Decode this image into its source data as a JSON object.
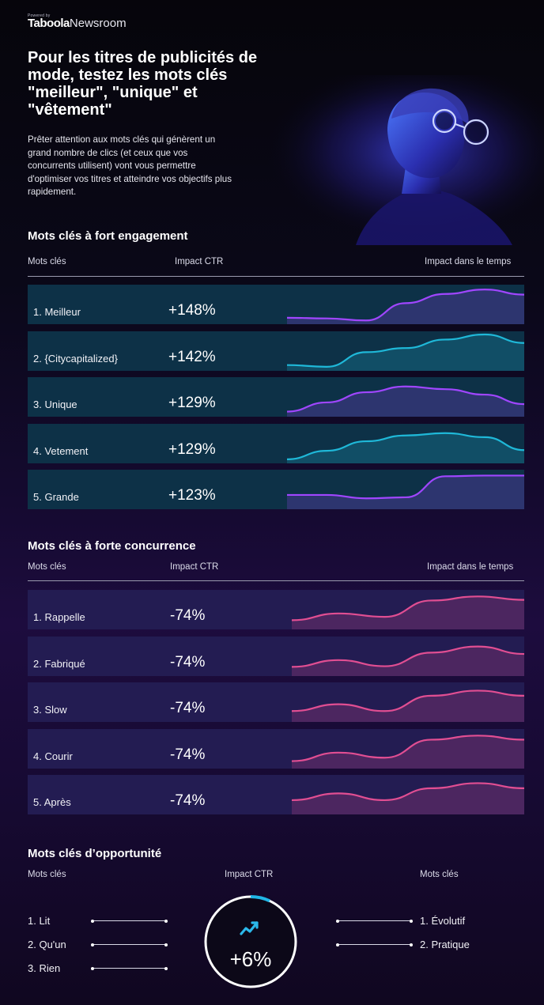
{
  "brand": {
    "powered_by": "Powered by",
    "logo_text": "Taboola",
    "product": "Newsroom"
  },
  "headline": "Pour les titres de publicités de mode, testez les mots clés \"meilleur\", \"unique\" et \"vêtement\"",
  "intro": "Prêter attention aux mots clés qui génèrent un grand nombre de clics (et ceux que vos concurrents utilisent) vont vous permettre d'optimiser vos titres et atteindre vos objectifs plus rapidement.",
  "colors": {
    "purple": "#a046ff",
    "cyan": "#1fb8d8",
    "pink": "#e14e92",
    "ring": "#20b6e6"
  },
  "chart_data": [
    {
      "type": "line",
      "title": "Mots clés à fort engagement",
      "columns": {
        "keyword": "Mots clés",
        "impact": "Impact CTR",
        "trend": "Impact dans le temps"
      },
      "rows": [
        {
          "label": "1. Meilleur",
          "impact": "+148%",
          "trend": [
            0.12,
            0.1,
            0.04,
            0.55,
            0.82,
            0.95,
            0.8
          ],
          "color": "purple"
        },
        {
          "label": "2. {Citycapitalized}",
          "impact": "+142%",
          "trend": [
            0.1,
            0.05,
            0.48,
            0.6,
            0.85,
            1.0,
            0.75
          ],
          "color": "cyan"
        },
        {
          "label": "3. Unique",
          "impact": "+129%",
          "trend": [
            0.08,
            0.35,
            0.65,
            0.82,
            0.74,
            0.58,
            0.3
          ],
          "color": "purple"
        },
        {
          "label": "4. Vetement",
          "impact": "+129%",
          "trend": [
            0.05,
            0.3,
            0.58,
            0.75,
            0.82,
            0.7,
            0.32
          ],
          "color": "cyan"
        },
        {
          "label": "5. Grande",
          "impact": "+123%",
          "trend": [
            0.35,
            0.35,
            0.25,
            0.28,
            0.9,
            0.92,
            0.92
          ],
          "color": "purple"
        }
      ]
    },
    {
      "type": "line",
      "title": "Mots clés à forte concurrence",
      "columns": {
        "keyword": "Mots clés",
        "impact": "Impact CTR",
        "trend": "Impact dans le temps"
      },
      "rows": [
        {
          "label": "1. Rappelle",
          "impact": "-74%",
          "trend": [
            0.2,
            0.4,
            0.3,
            0.78,
            0.9,
            0.8
          ],
          "color": "pink"
        },
        {
          "label": "2. Fabriqué",
          "impact": "-74%",
          "trend": [
            0.2,
            0.4,
            0.22,
            0.62,
            0.8,
            0.58
          ],
          "color": "pink"
        },
        {
          "label": "3. Slow",
          "impact": "-74%",
          "trend": [
            0.25,
            0.45,
            0.25,
            0.7,
            0.85,
            0.7
          ],
          "color": "pink"
        },
        {
          "label": "4. Courir",
          "impact": "-74%",
          "trend": [
            0.15,
            0.4,
            0.25,
            0.78,
            0.9,
            0.78
          ],
          "color": "pink"
        },
        {
          "label": "5. Après",
          "impact": "-74%",
          "trend": [
            0.35,
            0.55,
            0.35,
            0.7,
            0.85,
            0.7
          ],
          "color": "pink"
        }
      ]
    }
  ],
  "opportunity": {
    "title": "Mots clés d’opportunité",
    "left_heading": "Mots clés",
    "center_heading": "Impact CTR",
    "right_heading": "Mots clés",
    "left": [
      "1. Lit",
      "2. Qu'un",
      "3. Rien"
    ],
    "right": [
      "1. Évolutif",
      "2. Pratique"
    ],
    "value": "+6%",
    "icon": "trending-up-icon"
  }
}
